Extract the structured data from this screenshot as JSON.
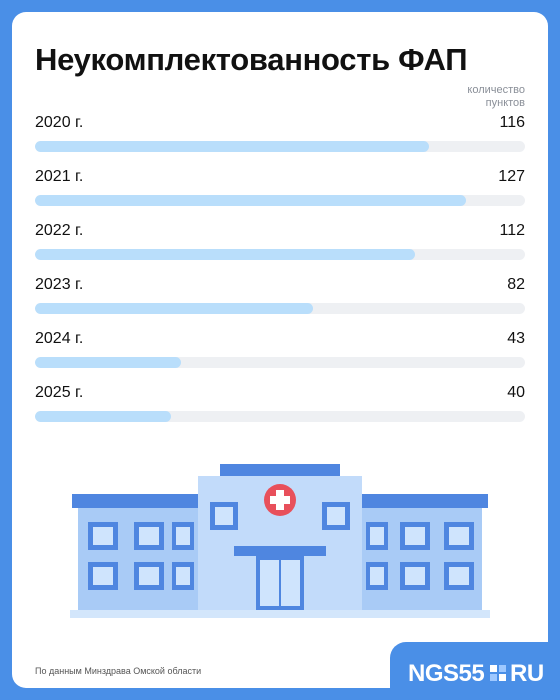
{
  "chart_data": {
    "type": "bar",
    "orientation": "horizontal",
    "title": "Неукомплектованность ФАП",
    "unit_label": "количество пунктов",
    "categories": [
      "2020 г.",
      "2021 г.",
      "2022 г.",
      "2023 г.",
      "2024 г.",
      "2025 г."
    ],
    "values": [
      116,
      127,
      112,
      82,
      43,
      40
    ],
    "color": "#b9defb",
    "source": "По данным Минздрава Омской области",
    "brand": [
      "NGS55",
      "RU"
    ]
  }
}
